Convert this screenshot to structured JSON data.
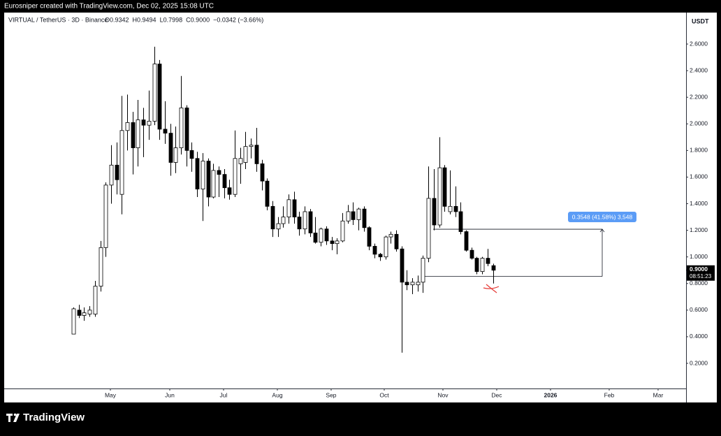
{
  "header": {
    "title": "Eurosniper created with TradingView.com, Dec 02, 2025 15:08 UTC"
  },
  "legend": {
    "symbol": "VIRTUAL / TetherUS · 3D · Binance",
    "ohlc": [
      "O0.9342",
      "H0.9494",
      "L0.7998",
      "C0.9000"
    ],
    "change": "−0.0342 (−3.66%)"
  },
  "chart_data": {
    "type": "candlestick",
    "axis_unit": "USDT",
    "categories": [
      null,
      null,
      null,
      null,
      null,
      null,
      null,
      null,
      null,
      null,
      null,
      null,
      null,
      null,
      null,
      null,
      null,
      null,
      null,
      null,
      null,
      null,
      null,
      null,
      null,
      null,
      null,
      null,
      null,
      null,
      null,
      null,
      null,
      null,
      null,
      null,
      null,
      null,
      null,
      null,
      null,
      null,
      null,
      null,
      null,
      null,
      null,
      null,
      null,
      null,
      null,
      null,
      null,
      null,
      null,
      null,
      null,
      null,
      null,
      null,
      null,
      null,
      null,
      null,
      null,
      null,
      null,
      null,
      null,
      null,
      null,
      null,
      null,
      null,
      null,
      null,
      null,
      null,
      null
    ],
    "open": [
      0.42,
      0.6,
      0.56,
      0.57,
      0.57,
      0.78,
      1.07,
      1.54,
      1.69,
      1.47,
      1.95,
      2.01,
      1.82,
      2.03,
      1.99,
      2.02,
      2.45,
      1.96,
      1.93,
      1.71,
      1.82,
      2.12,
      1.8,
      1.74,
      1.51,
      1.72,
      1.45,
      1.65,
      1.62,
      1.52,
      1.47,
      1.7,
      1.71,
      1.83,
      1.84,
      1.7,
      1.57,
      1.38,
      1.21,
      1.25,
      1.3,
      1.43,
      1.3,
      1.21,
      1.34,
      1.18,
      1.11,
      1.21,
      1.12,
      1.1,
      1.12,
      1.27,
      1.34,
      1.28,
      1.36,
      1.22,
      1.08,
      1.02,
      1.0,
      1.15,
      1.17,
      1.06,
      0.81,
      0.79,
      0.79,
      0.81,
      0.99,
      1.44,
      1.24,
      1.67,
      1.34,
      1.38,
      1.34,
      1.19,
      1.05,
      0.99,
      0.89,
      0.99,
      0.9342
    ],
    "high": [
      0.62,
      0.64,
      0.62,
      0.63,
      0.82,
      1.12,
      1.56,
      1.84,
      1.86,
      2.21,
      2.22,
      2.09,
      2.18,
      2.12,
      2.25,
      2.58,
      2.48,
      2.17,
      2.0,
      1.98,
      2.36,
      2.14,
      1.86,
      1.79,
      1.78,
      1.74,
      1.7,
      1.68,
      1.66,
      1.58,
      1.95,
      1.82,
      1.94,
      1.89,
      1.97,
      1.73,
      1.59,
      1.42,
      1.3,
      1.38,
      1.47,
      1.49,
      1.34,
      1.38,
      1.36,
      1.3,
      1.22,
      1.23,
      1.15,
      1.14,
      1.33,
      1.39,
      1.41,
      1.37,
      1.38,
      1.23,
      1.1,
      1.03,
      1.16,
      1.19,
      1.2,
      1.08,
      0.9,
      0.84,
      0.86,
      1.01,
      1.68,
      1.66,
      1.9,
      1.69,
      1.65,
      1.53,
      1.41,
      1.2,
      1.07,
      1.0,
      1.0,
      1.06,
      0.9494
    ],
    "low": [
      0.42,
      0.54,
      0.52,
      0.55,
      0.55,
      0.74,
      1.0,
      1.4,
      1.47,
      1.32,
      1.8,
      1.62,
      1.68,
      1.75,
      1.88,
      1.99,
      1.88,
      1.85,
      1.61,
      1.63,
      1.77,
      1.68,
      1.64,
      1.45,
      1.27,
      1.38,
      1.44,
      1.45,
      1.44,
      1.43,
      1.45,
      1.55,
      1.66,
      1.74,
      1.64,
      1.5,
      1.35,
      1.15,
      1.15,
      1.22,
      1.25,
      1.25,
      1.16,
      1.17,
      1.15,
      1.1,
      1.08,
      1.09,
      1.05,
      1.02,
      1.11,
      1.25,
      1.24,
      1.2,
      1.19,
      1.05,
      0.99,
      0.97,
      0.98,
      1.1,
      1.04,
      0.28,
      0.75,
      0.72,
      0.74,
      0.73,
      0.96,
      1.2,
      1.22,
      1.34,
      1.32,
      1.3,
      1.17,
      1.04,
      0.98,
      0.87,
      0.87,
      0.93,
      0.7998
    ],
    "close": [
      0.61,
      0.56,
      0.58,
      0.6,
      0.78,
      1.07,
      1.54,
      1.69,
      1.58,
      1.95,
      2.01,
      1.82,
      2.03,
      1.99,
      2.02,
      2.45,
      1.96,
      1.93,
      1.71,
      1.82,
      2.12,
      1.8,
      1.74,
      1.51,
      1.72,
      1.45,
      1.65,
      1.62,
      1.52,
      1.47,
      1.74,
      1.74,
      1.83,
      1.84,
      1.7,
      1.57,
      1.38,
      1.21,
      1.25,
      1.3,
      1.43,
      1.3,
      1.21,
      1.34,
      1.18,
      1.11,
      1.21,
      1.12,
      1.1,
      1.12,
      1.27,
      1.34,
      1.28,
      1.36,
      1.22,
      1.08,
      1.02,
      1.0,
      1.15,
      1.17,
      1.06,
      0.81,
      0.79,
      0.81,
      0.81,
      0.99,
      1.44,
      1.24,
      1.67,
      1.38,
      1.38,
      1.34,
      1.19,
      1.05,
      0.99,
      0.89,
      0.99,
      0.95,
      0.9
    ],
    "up_color": "#ffffff",
    "down_color": "#000000",
    "wick_color": "#000000",
    "grid": false,
    "xlim": [
      -12.86,
      113.9
    ],
    "xticks": [
      {
        "value": 6.88,
        "label": "May"
      },
      {
        "value": 17.92,
        "label": "Jun"
      },
      {
        "value": 27.92,
        "label": "Jul"
      },
      {
        "value": 37.92,
        "label": "Aug"
      },
      {
        "value": 47.92,
        "label": "Sep"
      },
      {
        "value": 57.79,
        "label": "Oct"
      },
      {
        "value": 68.7,
        "label": "Nov"
      },
      {
        "value": 78.7,
        "label": "Dec"
      },
      {
        "value": 88.7,
        "label": "2026"
      },
      {
        "value": 99.61,
        "label": "Feb"
      },
      {
        "value": 108.7,
        "label": "Mar"
      }
    ],
    "ylim": [
      0.011,
      2.826
    ],
    "yticks": [
      {
        "value": 0.2,
        "label": "0.2000"
      },
      {
        "value": 0.4,
        "label": "0.4000"
      },
      {
        "value": 0.6,
        "label": "0.6000"
      },
      {
        "value": 0.8,
        "label": "0.8000"
      },
      {
        "value": 1.0,
        "label": "1.0000"
      },
      {
        "value": 1.2,
        "label": "1.2000"
      },
      {
        "value": 1.4,
        "label": "1.4000"
      },
      {
        "value": 1.6,
        "label": "1.6000"
      },
      {
        "value": 1.8,
        "label": "1.8000"
      },
      {
        "value": 2.0,
        "label": "2.0000"
      },
      {
        "value": 2.2,
        "label": "2.2000"
      },
      {
        "value": 2.4,
        "label": "2.4000"
      },
      {
        "value": 2.6,
        "label": "2.6000"
      }
    ],
    "price_label": "0.9000",
    "countdown": "08:51:23",
    "measure": {
      "low": 0.8533,
      "high": 1.2081,
      "label": "0.3548 (41.58%) 3,548",
      "color": "#5b9cf6"
    }
  },
  "footer": {
    "brand": "TradingView"
  }
}
